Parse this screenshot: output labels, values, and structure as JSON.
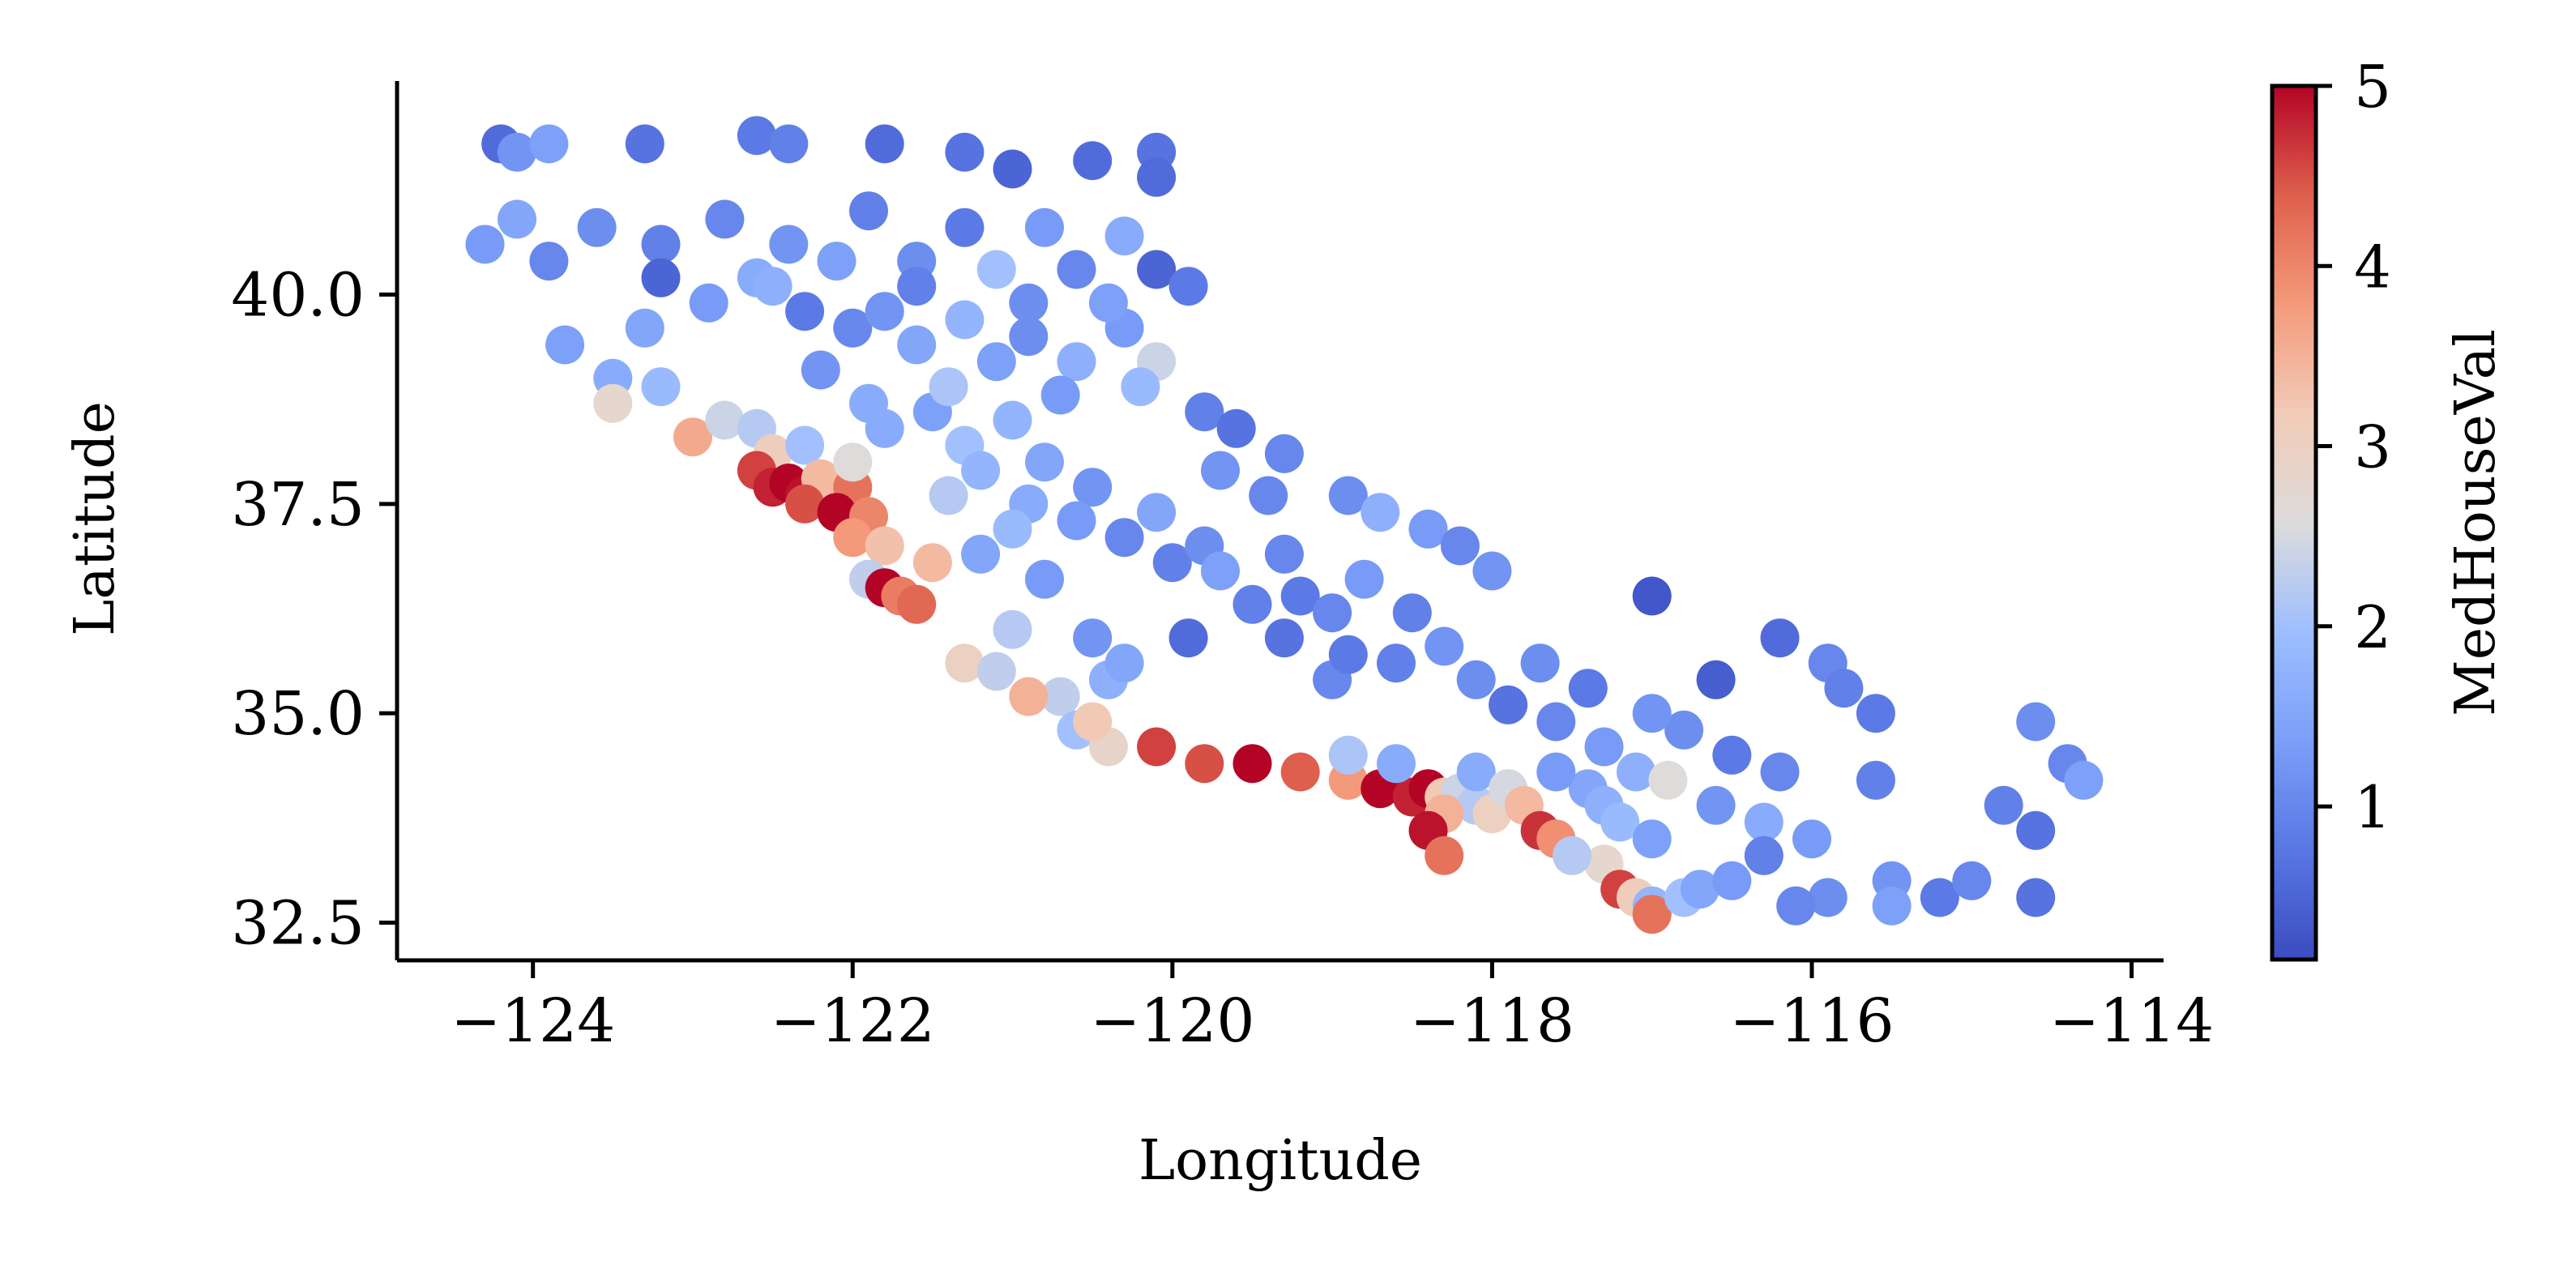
{
  "chart_data": {
    "type": "scatter",
    "title": "",
    "xlabel": "Longitude",
    "ylabel": "Latitude",
    "xlim": [
      -124.85,
      -113.8
    ],
    "ylim": [
      32.05,
      42.55
    ],
    "xticks": [
      -124,
      -122,
      -120,
      -118,
      -116,
      -114
    ],
    "xtick_labels": [
      "−124",
      "−122",
      "−120",
      "−118",
      "−116",
      "−114"
    ],
    "yticks": [
      32.5,
      35.0,
      37.5,
      40.0
    ],
    "ytick_labels": [
      "32.5",
      "35.0",
      "37.5",
      "40.0"
    ],
    "grid": false,
    "colormap": "coolwarm",
    "colorbar": {
      "label": "MedHouseVal",
      "range": [
        0.15,
        5.0
      ],
      "ticks": [
        1,
        2,
        3,
        4,
        5
      ],
      "tick_labels": [
        "1",
        "2",
        "3",
        "4",
        "5"
      ]
    },
    "points": [
      [
        -124.2,
        41.8,
        0.6
      ],
      [
        -124.1,
        41.7,
        1.2
      ],
      [
        -123.9,
        41.8,
        1.4
      ],
      [
        -123.3,
        41.8,
        0.7
      ],
      [
        -122.6,
        41.9,
        0.8
      ],
      [
        -122.4,
        41.8,
        0.9
      ],
      [
        -121.8,
        41.8,
        0.6
      ],
      [
        -121.3,
        41.7,
        0.7
      ],
      [
        -121.0,
        41.5,
        0.5
      ],
      [
        -120.5,
        41.6,
        0.6
      ],
      [
        -120.1,
        41.7,
        0.7
      ],
      [
        -120.1,
        41.4,
        0.6
      ],
      [
        -124.3,
        40.6,
        1.3
      ],
      [
        -124.1,
        40.9,
        1.5
      ],
      [
        -123.9,
        40.4,
        1.0
      ],
      [
        -123.6,
        40.8,
        1.1
      ],
      [
        -123.2,
        40.6,
        0.9
      ],
      [
        -123.2,
        40.2,
        0.5
      ],
      [
        -122.8,
        40.9,
        1.0
      ],
      [
        -122.6,
        40.2,
        1.6
      ],
      [
        -122.4,
        40.6,
        1.2
      ],
      [
        -122.1,
        40.4,
        1.4
      ],
      [
        -121.9,
        41.0,
        0.9
      ],
      [
        -121.6,
        40.4,
        1.1
      ],
      [
        -121.3,
        40.8,
        0.8
      ],
      [
        -121.1,
        40.3,
        2.0
      ],
      [
        -120.8,
        40.8,
        1.3
      ],
      [
        -120.6,
        40.3,
        1.0
      ],
      [
        -120.3,
        40.7,
        1.6
      ],
      [
        -120.1,
        40.3,
        0.5
      ],
      [
        -122.3,
        39.8,
        0.8
      ],
      [
        -122.0,
        39.6,
        1.0
      ],
      [
        -121.8,
        39.8,
        1.2
      ],
      [
        -121.6,
        39.4,
        1.5
      ],
      [
        -121.3,
        39.7,
        1.8
      ],
      [
        -121.1,
        39.2,
        1.4
      ],
      [
        -120.9,
        39.5,
        1.1
      ],
      [
        -120.6,
        39.2,
        1.7
      ],
      [
        -120.3,
        39.6,
        1.3
      ],
      [
        -120.1,
        39.2,
        2.4
      ],
      [
        -123.8,
        39.4,
        1.4
      ],
      [
        -123.5,
        39.0,
        1.6
      ],
      [
        -123.5,
        38.7,
        2.8
      ],
      [
        -123.2,
        38.9,
        1.9
      ],
      [
        -123.0,
        38.3,
        3.6
      ],
      [
        -122.8,
        38.5,
        2.4
      ],
      [
        -122.6,
        38.4,
        2.2
      ],
      [
        -122.5,
        38.1,
        3.1
      ],
      [
        -122.3,
        38.2,
        2.0
      ],
      [
        -122.6,
        37.9,
        4.6
      ],
      [
        -122.5,
        37.7,
        4.8
      ],
      [
        -122.4,
        37.75,
        5.0
      ],
      [
        -122.3,
        37.6,
        4.9
      ],
      [
        -122.2,
        37.8,
        3.4
      ],
      [
        -122.0,
        37.7,
        4.2
      ],
      [
        -122.3,
        37.5,
        4.5
      ],
      [
        -122.1,
        37.4,
        5.0
      ],
      [
        -121.9,
        37.35,
        4.0
      ],
      [
        -122.0,
        37.1,
        3.8
      ],
      [
        -121.8,
        37.0,
        3.3
      ],
      [
        -121.9,
        36.6,
        2.3
      ],
      [
        -121.8,
        36.5,
        5.0
      ],
      [
        -121.7,
        36.4,
        4.1
      ],
      [
        -121.5,
        36.8,
        3.4
      ],
      [
        -121.6,
        36.3,
        4.3
      ],
      [
        -122.0,
        38.0,
        2.6
      ],
      [
        -121.8,
        38.4,
        1.6
      ],
      [
        -121.5,
        38.6,
        1.4
      ],
      [
        -121.3,
        38.2,
        2.0
      ],
      [
        -121.0,
        38.5,
        1.8
      ],
      [
        -120.8,
        38.0,
        1.5
      ],
      [
        -120.5,
        37.7,
        1.2
      ],
      [
        -120.9,
        37.5,
        1.6
      ],
      [
        -120.6,
        37.3,
        1.3
      ],
      [
        -120.3,
        37.1,
        1.0
      ],
      [
        -120.0,
        36.8,
        0.9
      ],
      [
        -119.8,
        37.0,
        1.1
      ],
      [
        -119.7,
        36.7,
        1.4
      ],
      [
        -119.5,
        36.3,
        0.9
      ],
      [
        -119.2,
        36.4,
        0.8
      ],
      [
        -119.0,
        36.2,
        1.0
      ],
      [
        -119.3,
        35.9,
        0.7
      ],
      [
        -119.0,
        35.4,
        1.0
      ],
      [
        -118.9,
        35.7,
        0.8
      ],
      [
        -118.6,
        35.6,
        0.9
      ],
      [
        -118.3,
        35.8,
        1.2
      ],
      [
        -118.1,
        35.4,
        1.1
      ],
      [
        -117.9,
        35.1,
        0.7
      ],
      [
        -117.6,
        34.9,
        1.0
      ],
      [
        -117.3,
        34.6,
        1.3
      ],
      [
        -119.8,
        38.6,
        0.9
      ],
      [
        -119.6,
        38.4,
        0.7
      ],
      [
        -119.3,
        38.1,
        1.0
      ],
      [
        -118.9,
        37.6,
        1.1
      ],
      [
        -118.7,
        37.4,
        1.7
      ],
      [
        -118.4,
        37.2,
        1.3
      ],
      [
        -118.2,
        37.0,
        1.0
      ],
      [
        -118.0,
        36.7,
        1.2
      ],
      [
        -119.9,
        35.9,
        0.6
      ],
      [
        -120.4,
        35.4,
        1.7
      ],
      [
        -120.7,
        35.2,
        2.3
      ],
      [
        -120.6,
        34.8,
        2.0
      ],
      [
        -120.4,
        34.6,
        2.9
      ],
      [
        -120.1,
        34.6,
        4.6
      ],
      [
        -119.8,
        34.4,
        4.5
      ],
      [
        -119.5,
        34.4,
        5.0
      ],
      [
        -119.2,
        34.3,
        4.4
      ],
      [
        -118.9,
        34.2,
        3.8
      ],
      [
        -118.7,
        34.1,
        5.0
      ],
      [
        -118.5,
        34.0,
        4.8
      ],
      [
        -118.4,
        34.1,
        5.0
      ],
      [
        -118.3,
        34.0,
        3.2
      ],
      [
        -118.2,
        34.05,
        2.4
      ],
      [
        -118.1,
        33.9,
        2.2
      ],
      [
        -118.0,
        33.8,
        3.0
      ],
      [
        -118.3,
        33.8,
        3.5
      ],
      [
        -118.4,
        33.6,
        4.9
      ],
      [
        -118.3,
        33.3,
        4.2
      ],
      [
        -118.1,
        34.3,
        1.6
      ],
      [
        -117.9,
        34.1,
        2.5
      ],
      [
        -117.8,
        33.9,
        3.4
      ],
      [
        -117.7,
        33.6,
        4.7
      ],
      [
        -117.6,
        33.5,
        3.9
      ],
      [
        -117.4,
        34.1,
        1.5
      ],
      [
        -117.3,
        33.9,
        1.7
      ],
      [
        -117.2,
        33.7,
        1.9
      ],
      [
        -117.3,
        33.2,
        2.8
      ],
      [
        -117.2,
        32.9,
        4.6
      ],
      [
        -117.1,
        32.8,
        3.1
      ],
      [
        -117.0,
        32.7,
        1.8
      ],
      [
        -117.0,
        32.6,
        4.2
      ],
      [
        -116.8,
        32.8,
        2.0
      ],
      [
        -116.7,
        32.9,
        1.5
      ],
      [
        -116.5,
        33.0,
        1.3
      ],
      [
        -116.3,
        33.7,
        1.6
      ],
      [
        -116.2,
        34.3,
        1.0
      ],
      [
        -116.5,
        34.5,
        0.8
      ],
      [
        -116.8,
        34.8,
        1.1
      ],
      [
        -117.0,
        35.0,
        1.2
      ],
      [
        -117.0,
        36.4,
        0.3
      ],
      [
        -116.6,
        35.4,
        0.4
      ],
      [
        -116.2,
        35.9,
        0.6
      ],
      [
        -115.9,
        35.6,
        1.0
      ],
      [
        -115.8,
        35.3,
        0.9
      ],
      [
        -115.6,
        35.0,
        0.8
      ],
      [
        -115.6,
        34.2,
        0.9
      ],
      [
        -115.5,
        33.0,
        1.2
      ],
      [
        -115.2,
        32.8,
        0.8
      ],
      [
        -115.0,
        33.0,
        1.0
      ],
      [
        -114.6,
        32.8,
        0.7
      ],
      [
        -114.6,
        34.9,
        1.1
      ],
      [
        -114.4,
        34.4,
        1.0
      ],
      [
        -114.3,
        34.2,
        1.4
      ],
      [
        -114.6,
        33.6,
        0.7
      ],
      [
        -114.8,
        33.9,
        0.9
      ],
      [
        -115.5,
        32.7,
        1.4
      ],
      [
        -115.9,
        32.8,
        1.1
      ],
      [
        -116.1,
        32.7,
        1.0
      ],
      [
        -116.3,
        33.3,
        0.9
      ],
      [
        -116.0,
        33.5,
        1.3
      ],
      [
        -122.5,
        40.1,
        1.7
      ],
      [
        -122.9,
        39.9,
        1.3
      ],
      [
        -123.3,
        39.6,
        1.5
      ],
      [
        -121.6,
        40.1,
        0.9
      ],
      [
        -120.9,
        39.9,
        1.1
      ],
      [
        -120.4,
        39.9,
        1.4
      ],
      [
        -119.9,
        40.1,
        0.8
      ],
      [
        -122.2,
        39.1,
        1.2
      ],
      [
        -121.9,
        38.7,
        1.6
      ],
      [
        -121.4,
        38.9,
        2.1
      ],
      [
        -120.7,
        38.8,
        1.3
      ],
      [
        -120.2,
        38.9,
        1.9
      ],
      [
        -119.4,
        37.6,
        1.0
      ],
      [
        -120.1,
        37.4,
        1.5
      ],
      [
        -119.7,
        37.9,
        1.2
      ],
      [
        -118.8,
        36.6,
        1.3
      ],
      [
        -119.3,
        36.9,
        1.0
      ],
      [
        -118.5,
        36.2,
        0.9
      ],
      [
        -117.7,
        35.6,
        1.1
      ],
      [
        -117.4,
        35.3,
        0.8
      ],
      [
        -121.2,
        37.9,
        1.8
      ],
      [
        -121.4,
        37.6,
        2.2
      ],
      [
        -121.0,
        37.2,
        1.9
      ],
      [
        -121.2,
        36.9,
        1.5
      ],
      [
        -120.8,
        36.6,
        1.3
      ],
      [
        -121.0,
        36.0,
        2.2
      ],
      [
        -120.5,
        35.9,
        1.2
      ],
      [
        -120.3,
        35.6,
        1.5
      ],
      [
        -121.3,
        35.6,
        3.0
      ],
      [
        -121.1,
        35.5,
        2.3
      ],
      [
        -120.9,
        35.2,
        3.5
      ],
      [
        -120.5,
        34.9,
        3.2
      ],
      [
        -118.9,
        34.5,
        2.1
      ],
      [
        -118.6,
        34.4,
        1.6
      ],
      [
        -117.6,
        34.3,
        1.3
      ],
      [
        -117.1,
        34.3,
        1.7
      ],
      [
        -116.9,
        34.2,
        2.6
      ],
      [
        -117.5,
        33.3,
        2.2
      ],
      [
        -117.0,
        33.5,
        1.4
      ],
      [
        -116.6,
        33.9,
        1.2
      ]
    ]
  }
}
